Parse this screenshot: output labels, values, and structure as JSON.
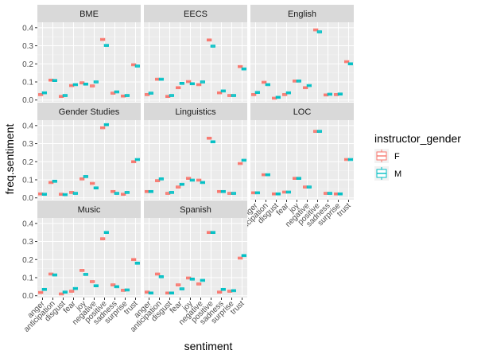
{
  "chart_data": {
    "type": "boxplot",
    "xlabel": "sentiment",
    "ylabel": "freq.sentiment",
    "categories": [
      "anger",
      "anticipation",
      "disgust",
      "fear",
      "joy",
      "negative",
      "positive",
      "sadness",
      "surprise",
      "trust"
    ],
    "yticks": [
      0.0,
      0.1,
      0.2,
      0.3,
      0.4
    ],
    "ytick_labels": [
      "0.0",
      "0.1",
      "0.2",
      "0.3",
      "0.4"
    ],
    "ylim": [
      -0.01,
      0.43
    ],
    "legend": {
      "title": "instructor_gender",
      "position": "right",
      "entries": [
        {
          "label": "F",
          "color": "#F8766D"
        },
        {
          "label": "M",
          "color": "#00BFC4"
        }
      ]
    },
    "facets": [
      {
        "name": "BME",
        "F": [
          0.03,
          0.11,
          0.02,
          0.08,
          0.095,
          0.078,
          0.335,
          0.038,
          0.022,
          0.195
        ],
        "M": [
          0.04,
          0.108,
          0.025,
          0.085,
          0.088,
          0.1,
          0.302,
          0.045,
          0.025,
          0.188
        ]
      },
      {
        "name": "EECS",
        "F": [
          0.03,
          0.115,
          0.02,
          0.068,
          0.102,
          0.085,
          0.332,
          0.04,
          0.025,
          0.185
        ],
        "M": [
          0.038,
          0.115,
          0.025,
          0.092,
          0.09,
          0.1,
          0.298,
          0.05,
          0.025,
          0.172
        ]
      },
      {
        "name": "English",
        "F": [
          0.03,
          0.098,
          0.01,
          0.03,
          0.105,
          0.068,
          0.388,
          0.028,
          0.03,
          0.212
        ],
        "M": [
          0.042,
          0.085,
          0.015,
          0.04,
          0.105,
          0.08,
          0.377,
          0.032,
          0.033,
          0.2
        ]
      },
      {
        "name": "Gender Studies",
        "F": [
          0.022,
          0.085,
          0.02,
          0.03,
          0.105,
          0.08,
          0.388,
          0.035,
          0.02,
          0.2
        ],
        "M": [
          0.02,
          0.092,
          0.018,
          0.025,
          0.118,
          0.055,
          0.405,
          0.025,
          0.03,
          0.212
        ]
      },
      {
        "name": "Linguistics",
        "F": [
          0.035,
          0.095,
          0.025,
          0.06,
          0.108,
          0.098,
          0.33,
          0.035,
          0.025,
          0.19
        ],
        "M": [
          0.035,
          0.105,
          0.03,
          0.075,
          0.098,
          0.085,
          0.31,
          0.035,
          0.025,
          0.208
        ]
      },
      {
        "name": "LOC",
        "F": [
          0.028,
          0.128,
          0.022,
          0.032,
          0.108,
          0.06,
          0.368,
          0.025,
          0.022,
          0.212
        ],
        "M": [
          0.028,
          0.128,
          0.022,
          0.032,
          0.108,
          0.06,
          0.368,
          0.025,
          0.022,
          0.212
        ]
      },
      {
        "name": "Music",
        "F": [
          0.018,
          0.12,
          0.01,
          0.025,
          0.14,
          0.078,
          0.315,
          0.06,
          0.03,
          0.2
        ],
        "M": [
          0.035,
          0.115,
          0.02,
          0.04,
          0.118,
          0.055,
          0.35,
          0.05,
          0.032,
          0.18
        ]
      },
      {
        "name": "Spanish",
        "F": [
          0.02,
          0.12,
          0.015,
          0.06,
          0.098,
          0.065,
          0.35,
          0.02,
          0.025,
          0.208
        ],
        "M": [
          0.015,
          0.105,
          0.015,
          0.038,
          0.092,
          0.085,
          0.35,
          0.035,
          0.028,
          0.222
        ]
      }
    ]
  }
}
